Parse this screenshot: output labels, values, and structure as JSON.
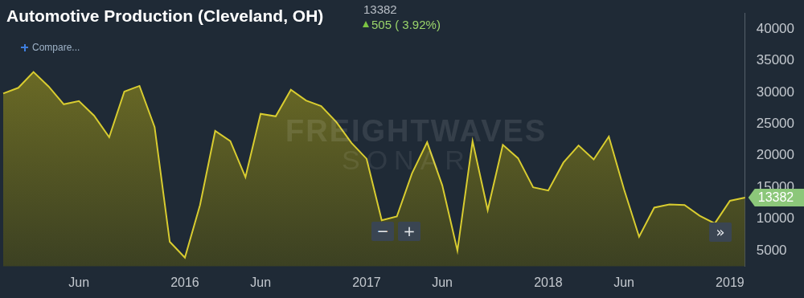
{
  "chart_data": {
    "type": "area",
    "title": "Automotive Production (Cleveland, OH)",
    "subtitle": "13382",
    "change_label": "505 ( 3.92%)",
    "compare_label": "Compare...",
    "watermark": [
      "FREIGHTWAVES",
      "SONAR"
    ],
    "controls": [
      "−",
      "+",
      "»"
    ],
    "categories": [
      null,
      null,
      null,
      null,
      null,
      "Jun",
      null,
      null,
      null,
      null,
      null,
      null,
      "2016",
      null,
      null,
      null,
      null,
      "Jun",
      null,
      null,
      null,
      null,
      null,
      null,
      "2017",
      null,
      null,
      null,
      null,
      "Jun",
      null,
      null,
      null,
      null,
      null,
      null,
      "2018",
      null,
      null,
      null,
      null,
      "Jun",
      null,
      null,
      null,
      null,
      null,
      null,
      "2019",
      null
    ],
    "values": [
      29800,
      30700,
      33200,
      30900,
      28100,
      28600,
      26300,
      22900,
      30100,
      31000,
      24500,
      6400,
      3900,
      12200,
      23900,
      22300,
      16600,
      26600,
      26200,
      30400,
      28700,
      27800,
      25300,
      22000,
      19500,
      9800,
      10400,
      17200,
      22100,
      15300,
      5000,
      22300,
      11400,
      21700,
      19600,
      15000,
      14500,
      18900,
      21600,
      19400,
      23000,
      14700,
      7200,
      11800,
      12300,
      12200,
      10500,
      9300,
      12877,
      13382
    ],
    "color": "#d8cc30",
    "ylim": [
      2500,
      42500
    ],
    "yticks": [
      5000,
      10000,
      15000,
      20000,
      25000,
      30000,
      35000,
      40000
    ],
    "grid": false
  }
}
